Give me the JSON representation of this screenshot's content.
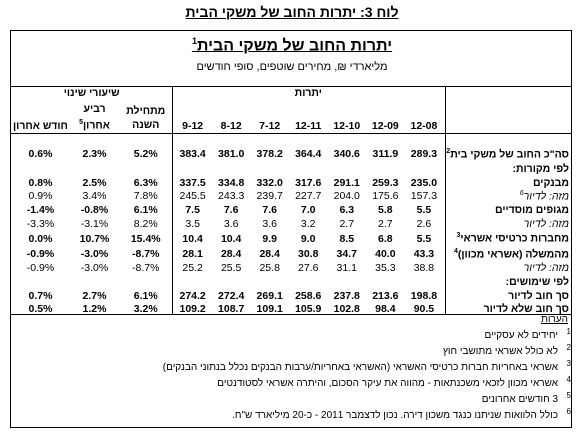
{
  "caption": "לוח 3: יתרות החוב של משקי הבית",
  "title": "יתרות החוב של משקי הבית",
  "title_note": "1",
  "subtitle": "מליארדי ₪, מחירים שוטפים, סופי חודשים",
  "group_headers": {
    "balances": "יתרות",
    "change_rates": "שיעורי שינוי"
  },
  "col_headers": {
    "last_month": "חודש אחרון",
    "last_quarter": "רביע אחרון",
    "last_quarter_note": "5",
    "since_year_start": "מתחילת השנה",
    "periods": [
      "12-08",
      "12-09",
      "12-10",
      "12-11",
      "7-12",
      "8-12",
      "9-12"
    ]
  },
  "rows": [
    {
      "label": "סה\"כ החוב של משקי בית",
      "note": "2",
      "bold": true,
      "italic": false,
      "values": [
        "289.3",
        "311.9",
        "340.6",
        "364.4",
        "378.2",
        "381.0",
        "383.4"
      ],
      "rates": [
        "5.2%",
        "2.3%",
        "0.6%"
      ]
    },
    {
      "label": "לפי מקורות:",
      "note": "",
      "bold": true,
      "italic": false,
      "values": [],
      "rates": []
    },
    {
      "label": "מבנקים",
      "note": "",
      "bold": true,
      "italic": false,
      "values": [
        "235.0",
        "259.3",
        "291.1",
        "317.6",
        "332.0",
        "334.8",
        "337.5"
      ],
      "rates": [
        "6.3%",
        "2.5%",
        "0.8%"
      ]
    },
    {
      "label": "מזה: לדיור",
      "note": "6",
      "bold": false,
      "italic": true,
      "values": [
        "157.3",
        "175.6",
        "204.0",
        "227.7",
        "239.7",
        "243.3",
        "245.5"
      ],
      "rates": [
        "7.8%",
        "3.4%",
        "0.9%"
      ]
    },
    {
      "label": "מגופים מוסדיים",
      "note": "",
      "bold": true,
      "italic": false,
      "values": [
        "5.5",
        "5.8",
        "6.3",
        "7.0",
        "7.6",
        "7.6",
        "7.5"
      ],
      "rates": [
        "6.1%",
        "-0.8%",
        "-1.4%"
      ]
    },
    {
      "label": "מזה: לדיור",
      "note": "",
      "bold": false,
      "italic": true,
      "values": [
        "2.6",
        "2.7",
        "2.7",
        "3.2",
        "3.6",
        "3.6",
        "3.5"
      ],
      "rates": [
        "8.2%",
        "-3.1%",
        "-3.3%"
      ]
    },
    {
      "label": "מחברות כרטיסי אשראי",
      "note": "3",
      "bold": true,
      "italic": false,
      "values": [
        "5.5",
        "6.8",
        "8.5",
        "9.0",
        "9.9",
        "10.4",
        "10.4"
      ],
      "rates": [
        "15.4%",
        "10.7%",
        "0.0%"
      ]
    },
    {
      "label": "מהמשלה (אשראי מכוון)",
      "note": "4",
      "bold": true,
      "italic": false,
      "values": [
        "43.3",
        "40.0",
        "34.7",
        "30.8",
        "28.4",
        "28.4",
        "28.1"
      ],
      "rates": [
        "-8.7%",
        "-3.0%",
        "-0.9%"
      ]
    },
    {
      "label": "מזה: לדיור",
      "note": "",
      "bold": false,
      "italic": true,
      "values": [
        "38.8",
        "35.3",
        "31.1",
        "27.6",
        "25.8",
        "25.5",
        "25.2"
      ],
      "rates": [
        "-8.7%",
        "-3.0%",
        "-0.9%"
      ]
    },
    {
      "label": "לפי שימושים:",
      "note": "",
      "bold": true,
      "italic": false,
      "values": [],
      "rates": []
    },
    {
      "label": "סך חוב לדיור",
      "note": "",
      "bold": true,
      "italic": false,
      "values": [
        "198.8",
        "213.6",
        "237.8",
        "258.6",
        "269.1",
        "272.4",
        "274.2"
      ],
      "rates": [
        "6.1%",
        "2.7%",
        "0.7%"
      ]
    },
    {
      "label": "סך חוב שלא לדיור",
      "note": "",
      "bold": true,
      "italic": false,
      "values": [
        "90.5",
        "98.4",
        "102.8",
        "105.9",
        "109.1",
        "108.7",
        "109.2"
      ],
      "rates": [
        "3.2%",
        "1.2%",
        "0.5%"
      ]
    }
  ],
  "notes_header": "הערות",
  "notes": [
    {
      "num": "1",
      "text": "יחידים לא עסקיים"
    },
    {
      "num": "2",
      "text": "לא כולל אשראי מתושבי חוץ"
    },
    {
      "num": "3",
      "text": "אשראי באחריות חברות כרטיסי האשראי (האשראי באחריות/ערבות הבנקים נכלל בנתוני הבנקים)"
    },
    {
      "num": "4",
      "text": "אשראי מכוון לזכאי משכנתאות - מהווה את עיקר הסכום, והיתרה אשראי לסטודנטים"
    },
    {
      "num": "5",
      "text": "3 חודשים אחרונים"
    },
    {
      "num": "6",
      "text": "כולל הלוואות שניתנו כנגד משכון דירה. נכון לדצמבר 2011 - כ-20 מיליארד ש\"ח."
    }
  ]
}
